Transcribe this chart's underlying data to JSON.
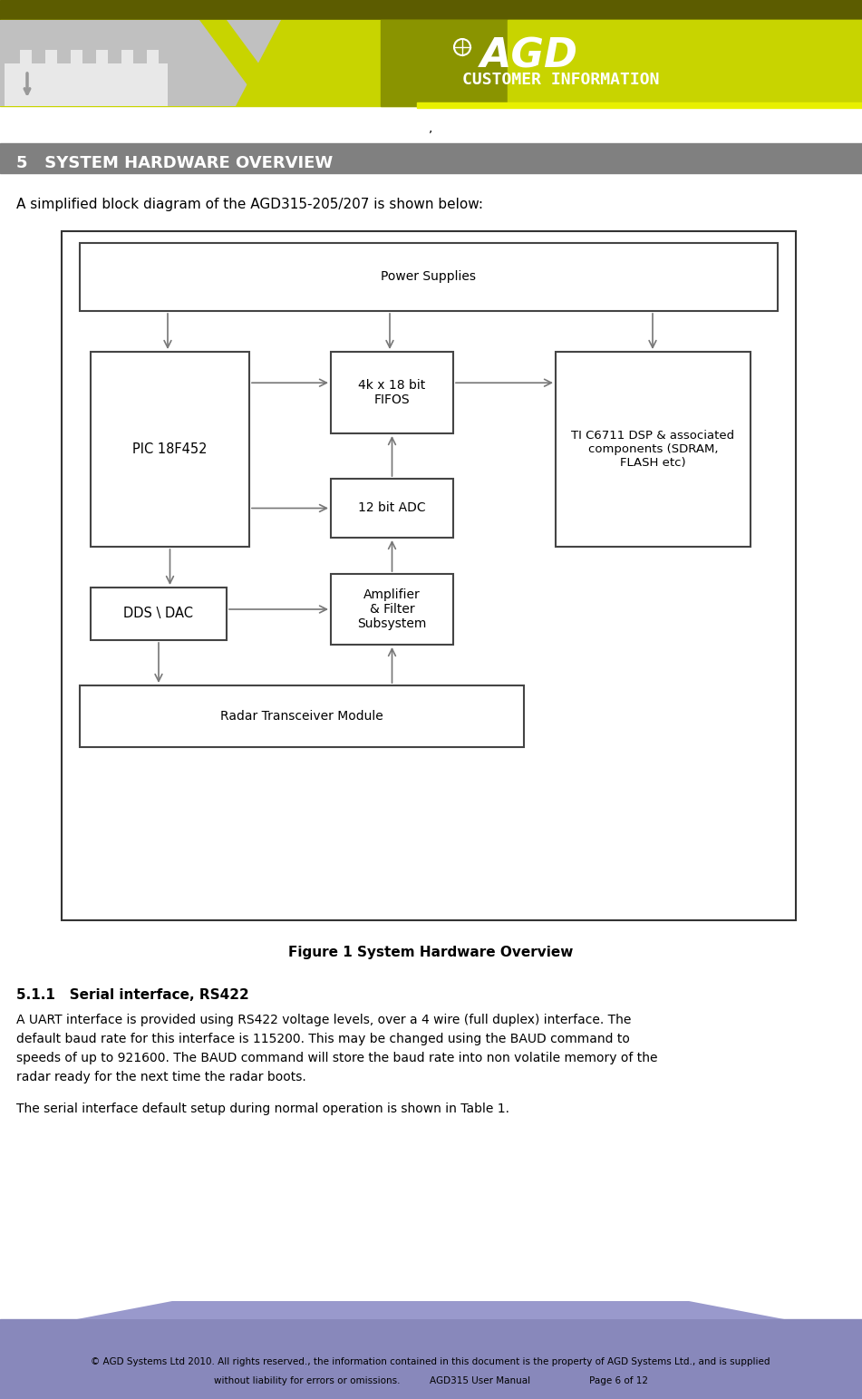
{
  "page_width": 9.51,
  "page_height": 15.43,
  "bg_color": "#ffffff",
  "block_labels": {
    "power_supplies": "Power Supplies",
    "fifo": "4k x 18 bit\nFIFOS",
    "adc": "12 bit ADC",
    "pic": "PIC 18F452",
    "dsp": "TI C6711 DSP & associated\ncomponents (SDRAM,\nFLASH etc)",
    "dds": "DDS \\ DAC",
    "amp": "Amplifier\n& Filter\nSubsystem",
    "radar": "Radar Transceiver Module"
  },
  "section_heading_text": "5   SYSTEM HARDWARE OVERVIEW",
  "intro_text": "A simplified block diagram of the AGD315-205/207 is shown below:",
  "figure_caption": "Figure 1 System Hardware Overview",
  "section511_title": "5.1.1   Serial interface, RS422",
  "body_line1": "A UART interface is provided using RS422 voltage levels, over a 4 wire (full duplex) interface. The",
  "body_line2": "default baud rate for this interface is 115200. This may be changed using the BAUD command to",
  "body_line3": "speeds of up to 921600. The BAUD command will store the baud rate into non volatile memory of the",
  "body_line4": "radar ready for the next time the radar boots.",
  "body2": "The serial interface default setup during normal operation is shown in Table 1.",
  "footer_line1": "© AGD Systems Ltd 2010. All rights reserved., the information contained in this document is the property of AGD Systems Ltd., and is supplied",
  "footer_line2": "without liability for errors or omissions.          AGD315 User Manual                    Page 6 of 12",
  "comma": ","
}
